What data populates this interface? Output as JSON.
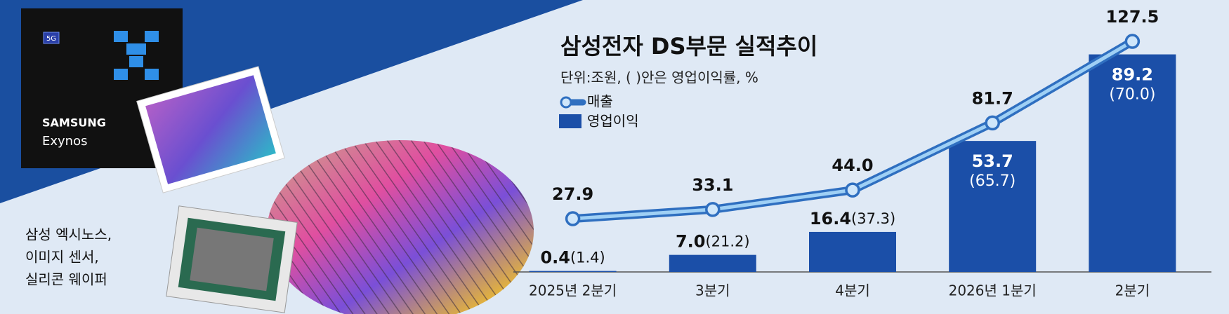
{
  "chart_data": {
    "type": "bar-line",
    "title": "삼성전자 DS부문 실적추이",
    "subtitle": "단위:조원, ( )안은 영업이익률, %",
    "categories": [
      "2025년 2분기",
      "3분기",
      "4분기",
      "2026년 1분기",
      "2분기"
    ],
    "series": [
      {
        "name": "매출",
        "type": "line",
        "axis": "y2",
        "color": "#2f6fc0",
        "values": [
          27.9,
          33.1,
          44.0,
          81.7,
          127.5
        ],
        "value_labels": [
          "27.9",
          "33.1",
          "44.0",
          "81.7",
          "127.5"
        ]
      },
      {
        "name": "영업이익",
        "type": "bar",
        "color": "#1b4fa8",
        "values": [
          0.4,
          7.0,
          16.4,
          53.7,
          89.2
        ],
        "value_labels": [
          "0.4",
          "7.0",
          "16.4",
          "53.7",
          "89.2"
        ],
        "margin_labels": [
          "(1.4)",
          "(21.2)",
          "(37.3)",
          "(65.7)",
          "(70.0)"
        ]
      }
    ],
    "ylim": [
      0,
      100
    ],
    "y2lim": [
      -2,
      135
    ]
  },
  "illustration": {
    "chip_badge": "5G",
    "chip_brand": "SAMSUNG",
    "chip_name": "Exynos",
    "caption_lines": [
      "삼성 엑시노스,",
      "이미지 센서,",
      "실리콘 웨이퍼"
    ]
  }
}
